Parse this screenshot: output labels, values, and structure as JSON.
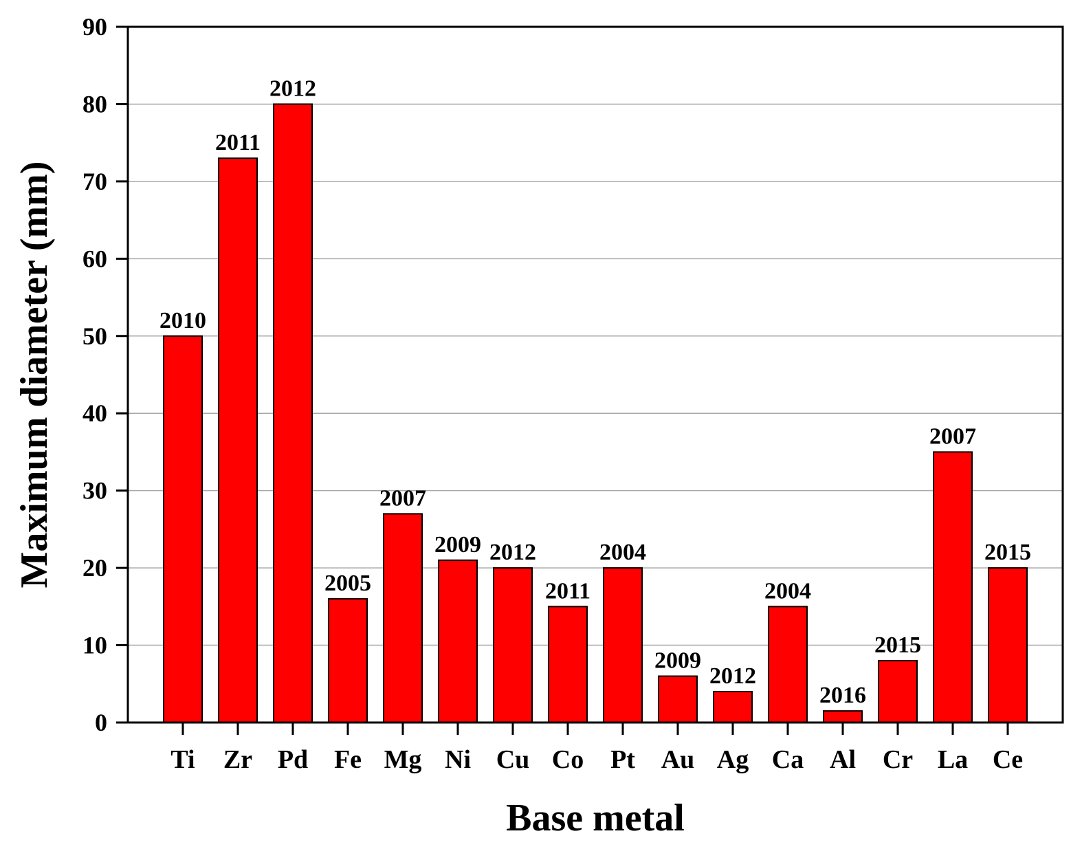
{
  "chart_data": {
    "type": "bar",
    "xlabel": "Base metal",
    "ylabel": "Maximum diameter (mm)",
    "ylim": [
      0,
      90
    ],
    "yticks": [
      0,
      10,
      20,
      30,
      40,
      50,
      60,
      70,
      80,
      90
    ],
    "grid": true,
    "categories": [
      "Ti",
      "Zr",
      "Pd",
      "Fe",
      "Mg",
      "Ni",
      "Cu",
      "Co",
      "Pt",
      "Au",
      "Ag",
      "Ca",
      "Al",
      "Cr",
      "La",
      "Ce"
    ],
    "values": [
      50,
      73,
      80,
      16,
      27,
      21,
      20,
      15,
      20,
      6,
      4,
      15,
      1.5,
      8,
      35,
      20
    ],
    "data_labels": [
      "2010",
      "2011",
      "2012",
      "2005",
      "2007",
      "2009",
      "2012",
      "2011",
      "2004",
      "2009",
      "2012",
      "2004",
      "2016",
      "2015",
      "2007",
      "2015"
    ],
    "bar_color": "#ff0000",
    "grid_color": "#a8a8a8"
  }
}
